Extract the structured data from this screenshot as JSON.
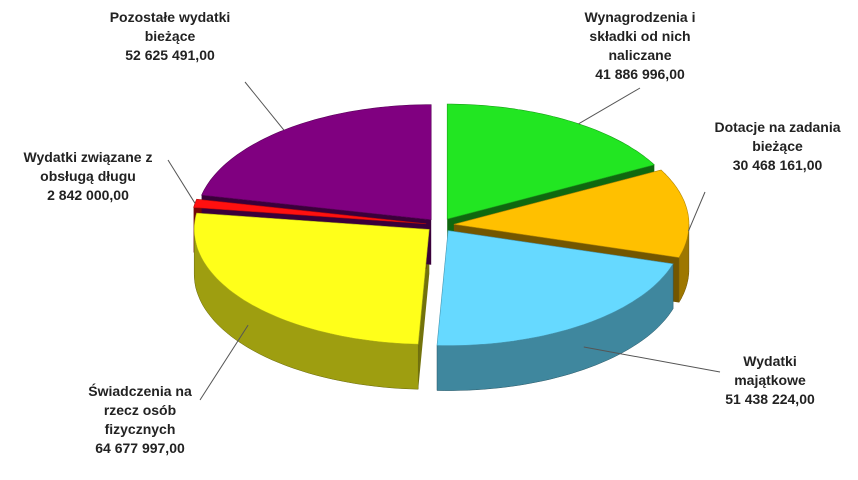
{
  "chart_data": {
    "type": "pie3d",
    "categories": [
      "Wynagrodzenia i składki od nich naliczane",
      "Dotacje na zadania bieżące",
      "Wydatki majątkowe",
      "Świadczenia na rzecz osób fizycznych",
      "Wydatki związane z obsługą długu",
      "Pozostałe wydatki bieżące"
    ],
    "values": [
      41886996,
      30468161,
      51438224,
      64677997,
      2842000,
      52625491
    ],
    "value_labels": [
      "41 886 996,00",
      "30 468 161,00",
      "51 438 224,00",
      "64 677 997,00",
      "2 842 000,00",
      "52 625 491,00"
    ],
    "colors": [
      "#22e622",
      "#ffc000",
      "#66d9ff",
      "#ffff1a",
      "#ff1010",
      "#800080"
    ]
  }
}
